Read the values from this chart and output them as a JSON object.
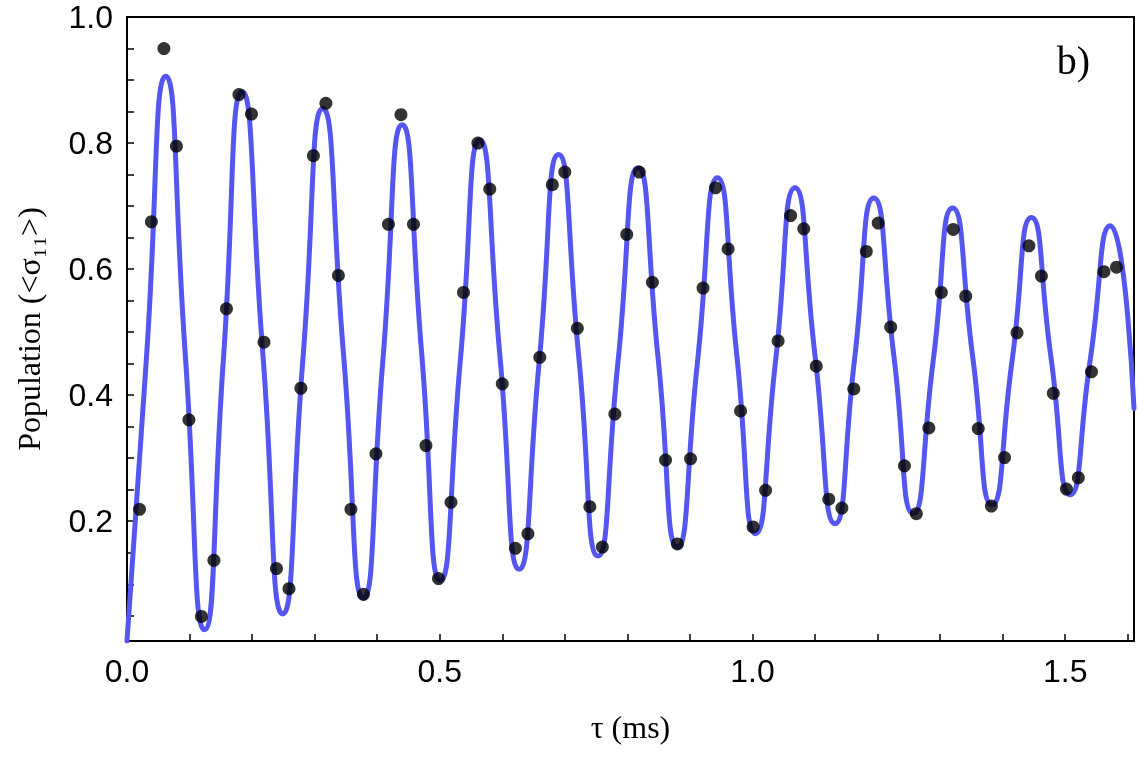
{
  "chart_data": {
    "type": "scatter",
    "xlabel": "τ (ms)",
    "ylabel": "Population (<σ₁₁>)",
    "annotations": [
      "b)"
    ],
    "xlim": [
      0,
      1.61
    ],
    "ylim": [
      0.01,
      1.0
    ],
    "xticks": [
      {
        "value": 0,
        "label": "0.0"
      },
      {
        "value": 0.1,
        "label": null
      },
      {
        "value": 0.2,
        "label": null
      },
      {
        "value": 0.3,
        "label": null
      },
      {
        "value": 0.4,
        "label": null
      },
      {
        "value": 0.5,
        "label": "0.5"
      },
      {
        "value": 0.6,
        "label": null
      },
      {
        "value": 0.7,
        "label": null
      },
      {
        "value": 0.8,
        "label": null
      },
      {
        "value": 0.9,
        "label": null
      },
      {
        "value": 1.0,
        "label": "1.0"
      },
      {
        "value": 1.1,
        "label": null
      },
      {
        "value": 1.2,
        "label": null
      },
      {
        "value": 1.3,
        "label": null
      },
      {
        "value": 1.4,
        "label": null
      },
      {
        "value": 1.5,
        "label": "1.5"
      },
      {
        "value": 1.6,
        "label": null
      }
    ],
    "yticks": [
      {
        "value": 0.05,
        "label": null
      },
      {
        "value": 0.1,
        "label": null
      },
      {
        "value": 0.15,
        "label": null
      },
      {
        "value": 0.2,
        "label": "0.2"
      },
      {
        "value": 0.25,
        "label": null
      },
      {
        "value": 0.3,
        "label": null
      },
      {
        "value": 0.35,
        "label": null
      },
      {
        "value": 0.4,
        "label": "0.4"
      },
      {
        "value": 0.45,
        "label": null
      },
      {
        "value": 0.5,
        "label": null
      },
      {
        "value": 0.55,
        "label": null
      },
      {
        "value": 0.6,
        "label": "0.6"
      },
      {
        "value": 0.65,
        "label": null
      },
      {
        "value": 0.7,
        "label": null
      },
      {
        "value": 0.75,
        "label": null
      },
      {
        "value": 0.8,
        "label": "0.8"
      },
      {
        "value": 0.85,
        "label": null
      },
      {
        "value": 0.9,
        "label": null
      },
      {
        "value": 0.95,
        "label": null
      },
      {
        "value": 1.0,
        "label": "1.0"
      }
    ],
    "series": [
      {
        "marker": "circle",
        "color": "#000000",
        "x": [
          0.02,
          0.039,
          0.059,
          0.079,
          0.099,
          0.119,
          0.139,
          0.159,
          0.179,
          0.199,
          0.219,
          0.239,
          0.259,
          0.278,
          0.298,
          0.318,
          0.338,
          0.358,
          0.378,
          0.398,
          0.418,
          0.438,
          0.458,
          0.478,
          0.498,
          0.518,
          0.538,
          0.561,
          0.58,
          0.6,
          0.621,
          0.641,
          0.66,
          0.68,
          0.7,
          0.72,
          0.74,
          0.76,
          0.78,
          0.799,
          0.819,
          0.84,
          0.861,
          0.88,
          0.901,
          0.921,
          0.941,
          0.961,
          0.981,
          1.001,
          1.021,
          1.041,
          1.061,
          1.082,
          1.102,
          1.122,
          1.143,
          1.162,
          1.182,
          1.201,
          1.221,
          1.243,
          1.262,
          1.282,
          1.302,
          1.321,
          1.341,
          1.361,
          1.382,
          1.403,
          1.423,
          1.442,
          1.462,
          1.481,
          1.502,
          1.521,
          1.542,
          1.562,
          1.582
        ],
        "values": [
          0.219,
          0.675,
          0.95,
          0.795,
          0.361,
          0.049,
          0.138,
          0.537,
          0.877,
          0.846,
          0.484,
          0.125,
          0.093,
          0.411,
          0.78,
          0.863,
          0.59,
          0.219,
          0.084,
          0.307,
          0.671,
          0.845,
          0.671,
          0.32,
          0.109,
          0.23,
          0.563,
          0.8,
          0.727,
          0.418,
          0.157,
          0.18,
          0.46,
          0.734,
          0.754,
          0.506,
          0.223,
          0.159,
          0.37,
          0.655,
          0.754,
          0.579,
          0.297,
          0.164,
          0.299,
          0.57,
          0.729,
          0.632,
          0.375,
          0.191,
          0.249,
          0.486,
          0.685,
          0.664,
          0.446,
          0.235,
          0.221,
          0.41,
          0.628,
          0.673,
          0.508,
          0.288,
          0.212,
          0.348,
          0.563,
          0.663,
          0.557,
          0.347,
          0.224,
          0.301,
          0.499,
          0.637,
          0.589,
          0.403,
          0.251,
          0.269,
          0.437,
          0.596,
          0.603
        ]
      },
      {
        "type": "line",
        "marker": "none",
        "color": "#5555f0",
        "x": [
          0,
          0.031,
          0.062,
          0.093,
          0.124,
          0.154,
          0.184,
          0.217,
          0.249,
          0.281,
          0.313,
          0.346,
          0.378,
          0.409,
          0.44,
          0.471,
          0.501,
          0.533,
          0.564,
          0.596,
          0.627,
          0.659,
          0.69,
          0.722,
          0.753,
          0.785,
          0.817,
          0.849,
          0.88,
          0.912,
          0.944,
          0.975,
          1.005,
          1.037,
          1.068,
          1.1,
          1.132,
          1.163,
          1.194,
          1.226,
          1.257,
          1.289,
          1.32,
          1.352,
          1.383,
          1.415,
          1.446,
          1.477,
          1.508,
          1.54,
          1.572,
          1.61
        ],
        "values": [
          0.01,
          0.458,
          0.906,
          0.467,
          0.028,
          0.455,
          0.882,
          0.468,
          0.053,
          0.454,
          0.855,
          0.467,
          0.078,
          0.454,
          0.829,
          0.468,
          0.106,
          0.456,
          0.805,
          0.465,
          0.124,
          0.453,
          0.782,
          0.464,
          0.145,
          0.453,
          0.761,
          0.46,
          0.159,
          0.452,
          0.745,
          0.463,
          0.18,
          0.455,
          0.729,
          0.463,
          0.196,
          0.455,
          0.713,
          0.463,
          0.212,
          0.455,
          0.697,
          0.462,
          0.226,
          0.454,
          0.682,
          0.462,
          0.242,
          0.456,
          0.669,
          0.379
        ]
      }
    ]
  }
}
